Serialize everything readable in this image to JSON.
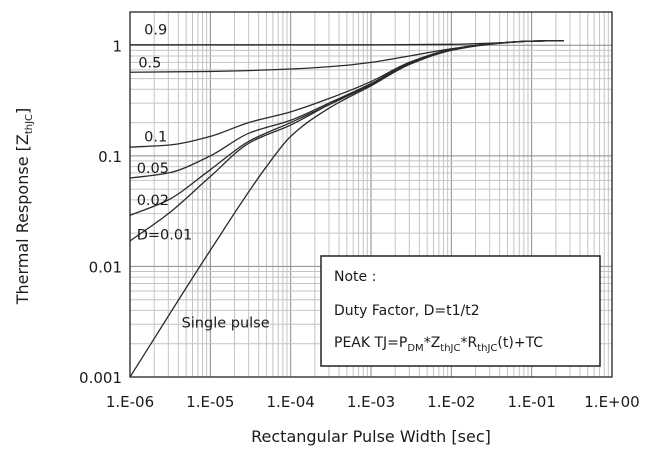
{
  "chart_data": {
    "type": "line",
    "xlabel": "Rectangular Pulse Width [sec]",
    "ylabel": {
      "main": "Thermal Response [Z",
      "sub": "thJC",
      "end": "]"
    },
    "x_scale": "log",
    "y_scale": "log",
    "xlim": [
      1e-06,
      1
    ],
    "ylim": [
      0.001,
      2
    ],
    "x_ticks": [
      {
        "value": 1e-06,
        "label": "1.E-06"
      },
      {
        "value": 1e-05,
        "label": "1.E-05"
      },
      {
        "value": 0.0001,
        "label": "1.E-04"
      },
      {
        "value": 0.001,
        "label": "1.E-03"
      },
      {
        "value": 0.01,
        "label": "1.E-02"
      },
      {
        "value": 0.1,
        "label": "1.E-01"
      },
      {
        "value": 1,
        "label": "1.E+00"
      }
    ],
    "y_ticks": [
      {
        "value": 0.001,
        "label": "0.001"
      },
      {
        "value": 0.01,
        "label": "0.01"
      },
      {
        "value": 0.1,
        "label": "0.1"
      },
      {
        "value": 1,
        "label": "1"
      }
    ],
    "grid": true,
    "series": [
      {
        "name": "0.9",
        "x": [
          1e-06,
          1e-05,
          0.0001,
          0.001,
          0.01,
          0.05,
          0.1,
          0.25
        ],
        "y": [
          1.01,
          1.01,
          1.01,
          1.01,
          1.02,
          1.06,
          1.09,
          1.1
        ]
      },
      {
        "name": "0.5",
        "x": [
          1e-06,
          1e-05,
          0.0001,
          0.0005,
          0.001,
          0.003,
          0.01,
          0.03,
          0.1,
          0.25
        ],
        "y": [
          0.57,
          0.58,
          0.61,
          0.66,
          0.7,
          0.8,
          0.93,
          1.03,
          1.09,
          1.1
        ]
      },
      {
        "name": "0.1",
        "x": [
          1e-06,
          3e-06,
          1e-05,
          3e-05,
          0.0001,
          0.0003,
          0.001,
          0.003,
          0.01,
          0.03,
          0.1,
          0.25
        ],
        "y": [
          0.12,
          0.125,
          0.15,
          0.2,
          0.25,
          0.33,
          0.47,
          0.7,
          0.92,
          1.03,
          1.09,
          1.1
        ]
      },
      {
        "name": "0.05",
        "x": [
          1e-06,
          3e-06,
          1e-05,
          3e-05,
          0.0001,
          0.0003,
          0.001,
          0.003,
          0.01,
          0.03,
          0.1,
          0.25
        ],
        "y": [
          0.063,
          0.07,
          0.1,
          0.16,
          0.21,
          0.3,
          0.45,
          0.69,
          0.91,
          1.03,
          1.09,
          1.1
        ]
      },
      {
        "name": "0.02",
        "x": [
          1e-06,
          3e-06,
          1e-05,
          3e-05,
          0.0001,
          0.0003,
          0.001,
          0.003,
          0.01,
          0.03,
          0.1,
          0.25
        ],
        "y": [
          0.029,
          0.04,
          0.075,
          0.135,
          0.2,
          0.29,
          0.44,
          0.68,
          0.91,
          1.03,
          1.09,
          1.1
        ]
      },
      {
        "name": "D=0.01",
        "x": [
          1e-06,
          3e-06,
          1e-05,
          3e-05,
          0.0001,
          0.0003,
          0.001,
          0.003,
          0.01,
          0.03,
          0.1,
          0.25
        ],
        "y": [
          0.017,
          0.03,
          0.065,
          0.13,
          0.19,
          0.29,
          0.44,
          0.68,
          0.91,
          1.03,
          1.09,
          1.1
        ]
      },
      {
        "name": "Single pulse",
        "x": [
          1e-06,
          1e-05,
          5e-05,
          0.0001,
          0.0003,
          0.001,
          0.003,
          0.01,
          0.03,
          0.1,
          0.25
        ],
        "y": [
          0.001,
          0.014,
          0.08,
          0.15,
          0.27,
          0.43,
          0.67,
          0.9,
          1.02,
          1.09,
          1.1
        ]
      }
    ],
    "curve_labels": [
      {
        "text": "0.9",
        "x": 1.3e-06,
        "y": 1.25
      },
      {
        "text": "0.5",
        "x": 1.1e-06,
        "y": 0.63
      },
      {
        "text": "0.1",
        "x": 1.3e-06,
        "y": 0.135
      },
      {
        "text": "0.05",
        "x": 1.05e-06,
        "y": 0.07
      },
      {
        "text": "0.02",
        "x": 1.05e-06,
        "y": 0.036
      },
      {
        "text": "D=0.01",
        "x": 1.05e-06,
        "y": 0.0175
      },
      {
        "text": "Single pulse",
        "x": 3.8e-06,
        "y": 0.0028
      }
    ],
    "annotation": {
      "line1": "Note :",
      "line2": "Duty Factor, D=t1/t2",
      "line3": {
        "prefix": "PEAK TJ=P",
        "sub1": "DM",
        "mid1": "*Z",
        "sub2": "thJC",
        "mid2": "*R",
        "sub3": "thJC",
        "suffix": "(t)+TC"
      }
    }
  }
}
